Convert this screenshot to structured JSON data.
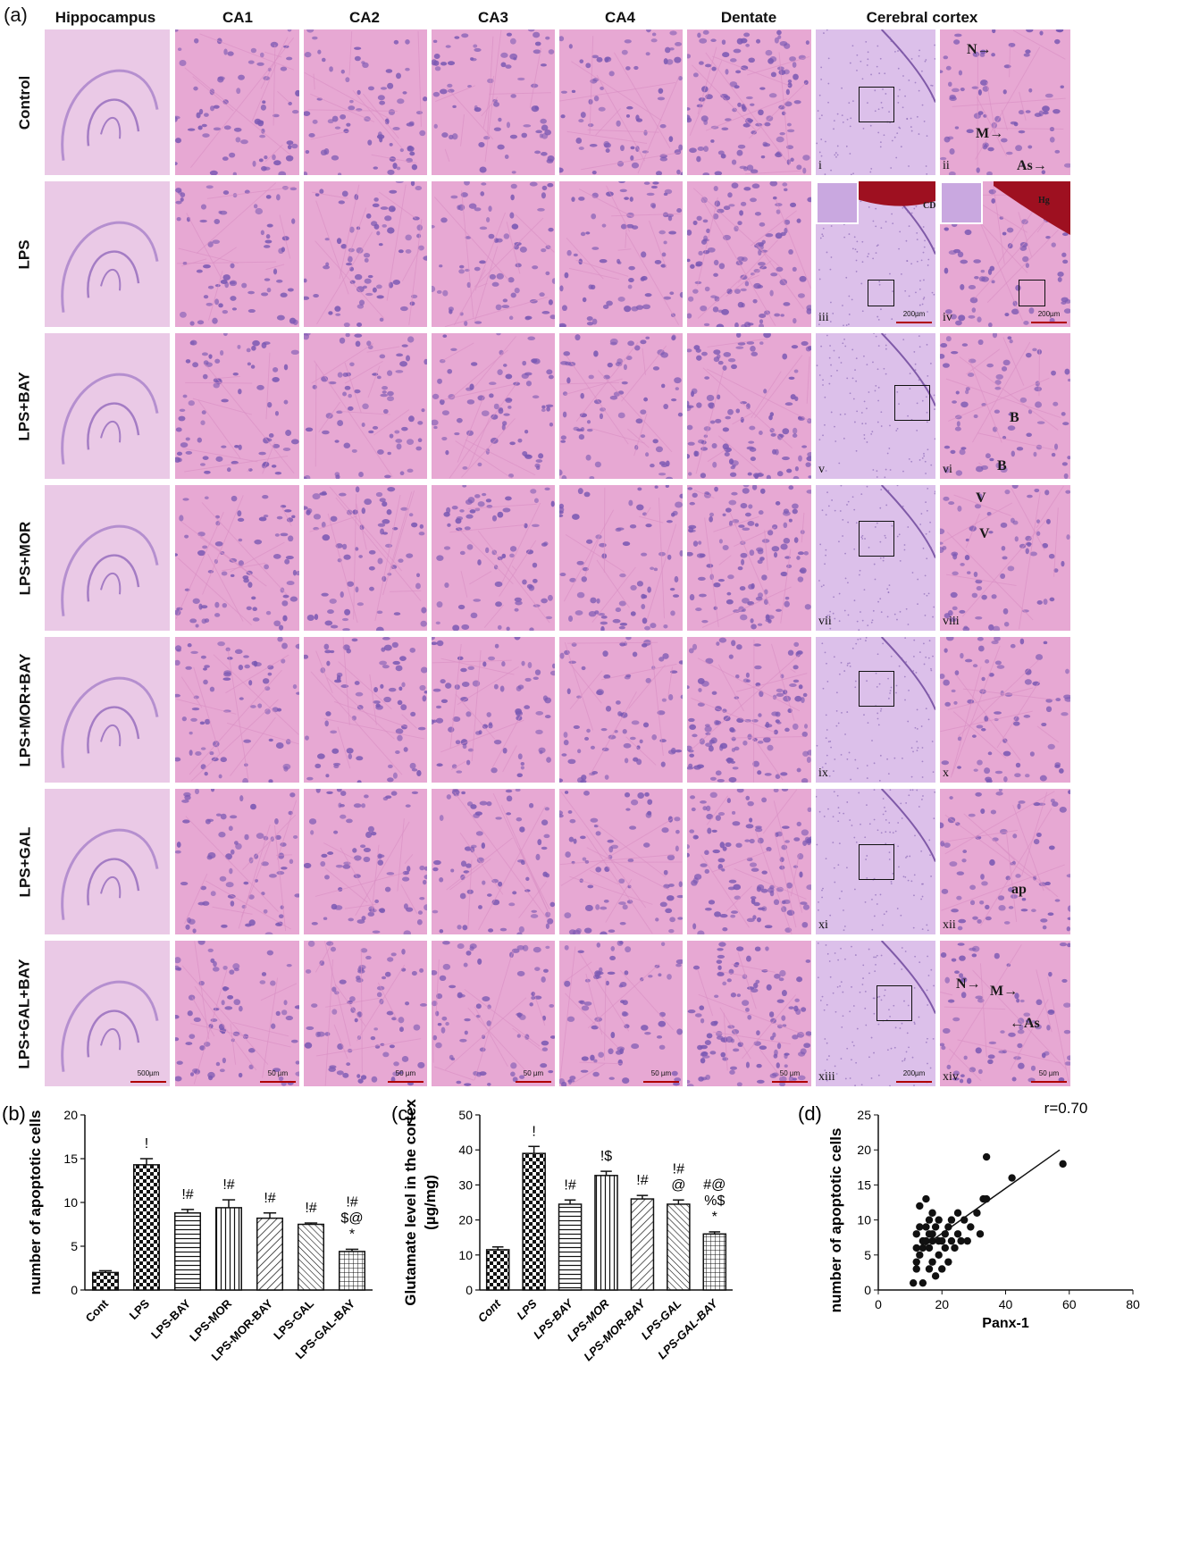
{
  "panel_a": {
    "letter": "(a)",
    "columns": [
      "Hippocampus",
      "CA1",
      "CA2",
      "CA3",
      "CA4",
      "Dentate",
      "Cerebral cortex"
    ],
    "rows": [
      "Control",
      "LPS",
      "LPS+BAY",
      "LPS+MOR",
      "LPS+MOR+BAY",
      "LPS+GAL",
      "LPS+GAL+BAY"
    ],
    "roman_labels": [
      "i",
      "ii",
      "iii",
      "iv",
      "v",
      "vi",
      "vii",
      "viii",
      "ix",
      "x",
      "xi",
      "xii",
      "xiii",
      "xiv"
    ],
    "scale_bars": {
      "hippocampus": "500µm",
      "regions": "50 µm",
      "cortex_low": "200µm",
      "cortex_high": "50 µm"
    },
    "annotations": {
      "control_N": "N→",
      "control_M": "M→",
      "control_As": "As→",
      "lps_cd": "CD",
      "lps_hg": "Hg",
      "bay_b1": "B",
      "bay_b2": "B",
      "mor_v1": "V",
      "mor_v2": "V",
      "gal_ap": "ap",
      "galbay_N": "N→",
      "galbay_M": "M→",
      "galbay_As": "←As"
    },
    "colors": {
      "he_pink": "#e6a9d1",
      "nuclei": "#7a5bb0",
      "hemorrhage": "#9e1020"
    }
  },
  "chart_data": [
    {
      "panel": "(b)",
      "type": "bar",
      "ylabel": "number of apoptotic cells",
      "ylim": [
        0,
        20
      ],
      "yticks": [
        0,
        5,
        10,
        15,
        20
      ],
      "categories": [
        "Cont",
        "LPS",
        "LPS-BAY",
        "LPS-MOR",
        "LPS-MOR-BAY",
        "LPS-GAL",
        "LPS-GAL-BAY"
      ],
      "values": [
        2.0,
        14.3,
        8.8,
        9.4,
        8.2,
        7.5,
        4.4
      ],
      "errors": [
        0.2,
        0.7,
        0.4,
        0.9,
        0.6,
        0.15,
        0.25
      ],
      "significance": [
        "",
        "!",
        "!#",
        "!#",
        "!#",
        "!#",
        "!#\n$@\n*"
      ]
    },
    {
      "panel": "(c)",
      "type": "bar",
      "ylabel": "Glutamate level in the cortex\n(µg/mg)",
      "ylim": [
        0,
        50
      ],
      "yticks": [
        0,
        10,
        20,
        30,
        40,
        50
      ],
      "categories": [
        "Cont",
        "LPS",
        "LPS-BAY",
        "LPS-MOR",
        "LPS-MOR-BAY",
        "LPS-GAL",
        "LPS-GAL-BAY"
      ],
      "values": [
        11.5,
        39.0,
        24.5,
        32.7,
        26.0,
        24.5,
        16.0
      ],
      "errors": [
        0.8,
        2.0,
        1.2,
        1.2,
        1.0,
        1.2,
        0.6
      ],
      "significance": [
        "",
        "!",
        "!#",
        "!$",
        "!#",
        "!#\n@",
        "#@\n%$\n*"
      ]
    },
    {
      "panel": "(d)",
      "type": "scatter",
      "xlabel": "Panx-1",
      "ylabel": "number of apoptotic cells",
      "xlim": [
        0,
        80
      ],
      "ylim": [
        0,
        25
      ],
      "xticks": [
        0,
        20,
        40,
        60,
        80
      ],
      "yticks": [
        0,
        5,
        10,
        15,
        20,
        25
      ],
      "annotation": "r=0.70",
      "points": [
        [
          11,
          1
        ],
        [
          12,
          3
        ],
        [
          12,
          4
        ],
        [
          12,
          6
        ],
        [
          12,
          8
        ],
        [
          13,
          5
        ],
        [
          13,
          9
        ],
        [
          13,
          12
        ],
        [
          14,
          1
        ],
        [
          14,
          6
        ],
        [
          14,
          7
        ],
        [
          15,
          7
        ],
        [
          15,
          9
        ],
        [
          15,
          13
        ],
        [
          16,
          3
        ],
        [
          16,
          6
        ],
        [
          16,
          8
        ],
        [
          16,
          10
        ],
        [
          17,
          4
        ],
        [
          17,
          7
        ],
        [
          17,
          8
        ],
        [
          17,
          11
        ],
        [
          18,
          2
        ],
        [
          18,
          9
        ],
        [
          19,
          5
        ],
        [
          19,
          7
        ],
        [
          19,
          10
        ],
        [
          20,
          3
        ],
        [
          20,
          7
        ],
        [
          21,
          6
        ],
        [
          21,
          8
        ],
        [
          22,
          4
        ],
        [
          22,
          9
        ],
        [
          23,
          7
        ],
        [
          23,
          10
        ],
        [
          24,
          6
        ],
        [
          25,
          8
        ],
        [
          25,
          11
        ],
        [
          26,
          7
        ],
        [
          27,
          10
        ],
        [
          28,
          7
        ],
        [
          29,
          9
        ],
        [
          31,
          11
        ],
        [
          32,
          8
        ],
        [
          33,
          13
        ],
        [
          34,
          13
        ],
        [
          34,
          19
        ],
        [
          42,
          16
        ],
        [
          58,
          18
        ]
      ],
      "trend_line": [
        [
          12,
          5.5
        ],
        [
          57,
          20
        ]
      ]
    }
  ]
}
